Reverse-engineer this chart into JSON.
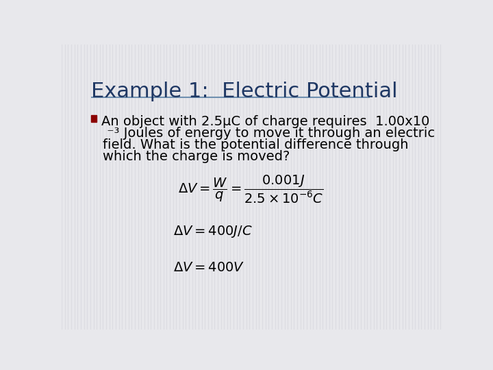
{
  "title": "Example 1:  Electric Potential",
  "title_color": "#1F3864",
  "title_fontsize": 22,
  "bg_color": "#E8E8EC",
  "stripe_color": "#DCDCE2",
  "bullet_color": "#8B0000",
  "bullet_text_color": "#000000",
  "bullet_fontsize": 14,
  "title_underline_color": "#7090B0",
  "body_text_line1": "An object with 2.5μC of charge requires  1.00x10",
  "body_text_line2": " ⁻³ Joules of energy to move it through an electric",
  "body_text_line3": "field. What is the potential difference through",
  "body_text_line4": "which the charge is moved?",
  "eq1": "\\Delta V = \\dfrac{W}{q} = \\dfrac{0.001J}{2.5 \\times 10^{-6} C}",
  "eq2": "\\Delta V = 400J/C",
  "eq3": "\\Delta V = 400V"
}
